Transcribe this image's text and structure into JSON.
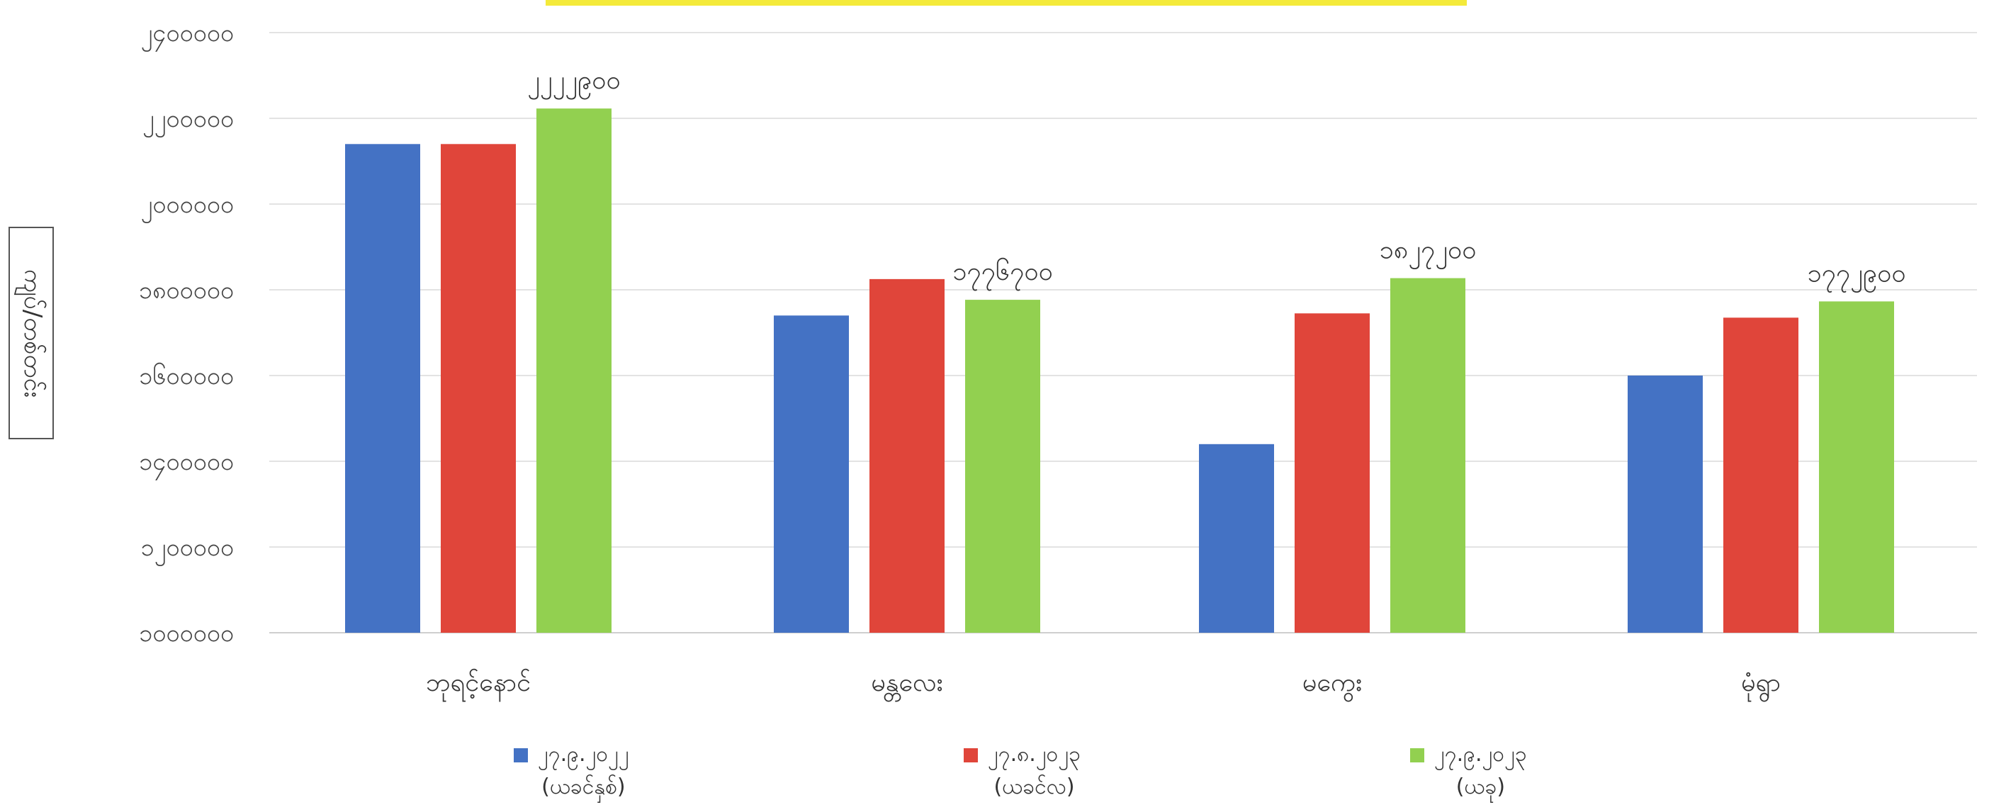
{
  "chart_data": {
    "type": "bar",
    "title": "",
    "xlabel": "",
    "ylabel": "ကျပ်/တစ်တင်း",
    "ylim": [
      1000000,
      2600000
    ],
    "yticks": [
      1000000,
      1200000,
      1400000,
      1600000,
      1800000,
      2000000,
      2200000,
      2400000
    ],
    "ytick_labels": [
      "၁၀၀၀၀၀၀",
      "၁၂၀၀၀၀၀",
      "၁၄၀၀၀၀၀",
      "၁၆၀၀၀၀၀",
      "၁၈၀၀၀၀၀",
      "၂၀၀၀၀၀၀",
      "၂၂၀၀၀၀၀",
      "၂၄၀၀၀၀၀"
    ],
    "grid": true,
    "legend_position": "bottom",
    "categories": [
      "ဘုရင့်နောင်",
      "မန္တလေး",
      "မကွေး",
      "မုံရွာ"
    ],
    "series": [
      {
        "name": "၂၇.၉.၂၀၂၂",
        "name_sub": "(ယခင်နှစ်)",
        "color": "#4472c4",
        "values": [
          2140000,
          1740000,
          1440000,
          1600000
        ]
      },
      {
        "name": "၂၇.၈.၂၀၂၃",
        "name_sub": "(ယခင်လ)",
        "color": "#e0453a",
        "values": [
          2140000,
          1825000,
          1745000,
          1735000
        ]
      },
      {
        "name": "၂၇.၉.၂၀၂၃",
        "name_sub": "(ယခု)",
        "color": "#92d050",
        "values": [
          2222900,
          1776700,
          1827200,
          1772900
        ]
      }
    ],
    "data_labels": [
      "၂၂၂၂၉၀၀",
      "၁၇၇၆၇၀၀",
      "၁၈၂၇၂၀၀",
      "၁၇၇၂၉၀၀"
    ]
  }
}
